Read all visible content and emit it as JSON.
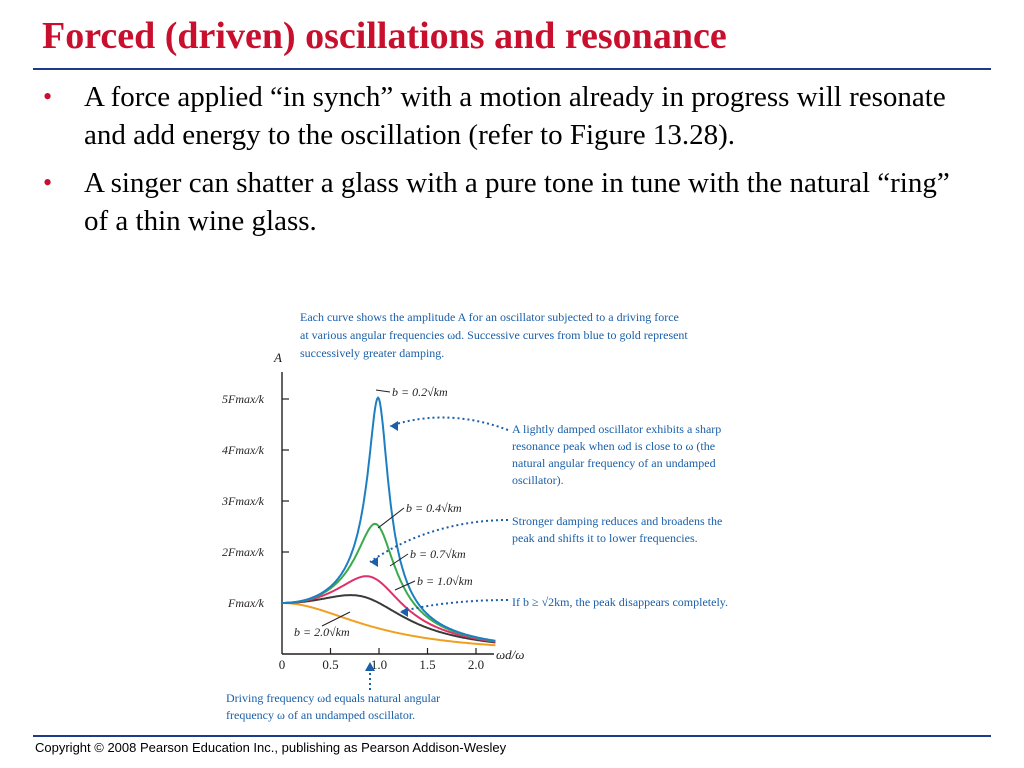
{
  "slide": {
    "title": "Forced (driven) oscillations and resonance",
    "bullets": [
      "A force applied “in synch” with a motion already in progress will resonate and add energy to the oscillation (refer to Figure 13.28).",
      "A singer can shatter a glass with a pure tone in tune with the natural “ring” of a thin wine glass."
    ],
    "footer": "Copyright © 2008 Pearson Education Inc., publishing as Pearson Addison-Wesley"
  },
  "colors": {
    "title": "#c8102e",
    "rule": "#1f3a8a",
    "caption": "#1a5fa8",
    "axis": "#231f20"
  },
  "chart_data": {
    "type": "line",
    "caption": [
      "Each curve shows the amplitude A for an oscillator subjected to a driving force",
      "at various angular frequencies ωd. Successive curves from blue to gold represent",
      "successively greater damping."
    ],
    "ylabel": "A",
    "xlabel": "ωd/ω",
    "x_ticks": [
      "0",
      "0.5",
      "1.0",
      "1.5",
      "2.0"
    ],
    "x_tick_values": [
      0,
      0.5,
      1.0,
      1.5,
      2.0
    ],
    "y_ticks": [
      "Fmax/k",
      "2Fmax/k",
      "3Fmax/k",
      "4Fmax/k",
      "5Fmax/k"
    ],
    "y_tick_values": [
      1,
      2,
      3,
      4,
      5
    ],
    "xlim": [
      0,
      2.3
    ],
    "ylim": [
      0,
      5.4
    ],
    "series": [
      {
        "name": "b = 0.2√km",
        "color": "#1d7fc1",
        "b": 0.2,
        "peak_x": 0.99,
        "peak_y": 5.0
      },
      {
        "name": "b = 0.4√km",
        "color": "#3aaa4a",
        "b": 0.4,
        "peak_x": 0.96,
        "peak_y": 2.55
      },
      {
        "name": "b = 0.7√km",
        "color": "#e0306a",
        "b": 0.7,
        "peak_x": 0.87,
        "peak_y": 1.52
      },
      {
        "name": "b = 1.0√km",
        "color": "#3a3a3a",
        "b": 1.0,
        "peak_x": 0.71,
        "peak_y": 1.15
      },
      {
        "name": "b = 2.0√km",
        "color": "#f0a020",
        "b": 2.0,
        "peak_x": 0.0,
        "peak_y": 1.0
      }
    ],
    "annotations": [
      [
        "A lightly damped oscillator exhibits a sharp",
        "resonance peak when ωd is close to ω (the",
        "natural angular frequency of an undamped",
        "oscillator)."
      ],
      [
        "Stronger damping reduces and broadens the",
        "peak and shifts it to lower frequencies."
      ],
      [
        "If b ≥ √2km, the peak disappears completely."
      ]
    ],
    "bottom_note": [
      "Driving frequency ωd equals natural angular",
      "frequency ω of an undamped oscillator."
    ]
  }
}
